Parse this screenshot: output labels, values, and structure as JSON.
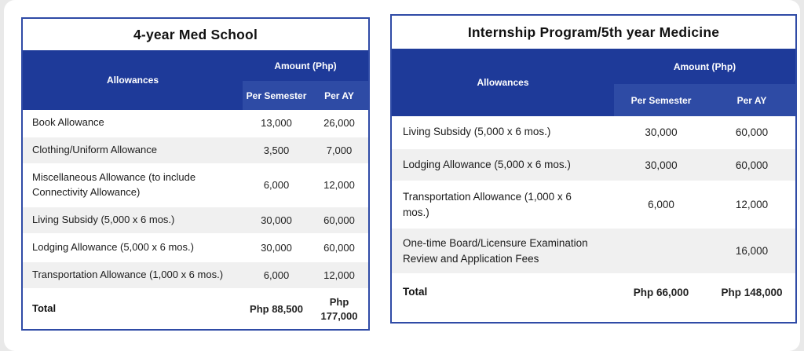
{
  "colors": {
    "header_blue": "#1e3a99",
    "subheader_blue": "#2e4ba5",
    "border_blue": "#2f4ba6",
    "alt_row_gray": "#f0f0f0",
    "card_background": "#ffffff",
    "page_background": "#e9e9e9"
  },
  "tables": [
    {
      "title": "4-year Med School",
      "headers": {
        "allowances": "Allowances",
        "amount": "Amount (Php)",
        "per_semester": "Per Semester",
        "per_ay": "Per AY"
      },
      "rows": [
        {
          "label": "Book Allowance",
          "per_semester": "13,000",
          "per_ay": "26,000"
        },
        {
          "label": "Clothing/Uniform Allowance",
          "per_semester": "3,500",
          "per_ay": "7,000"
        },
        {
          "label": "Miscellaneous Allowance (to include Connectivity Allowance)",
          "per_semester": "6,000",
          "per_ay": "12,000"
        },
        {
          "label": "Living Subsidy (5,000 x 6 mos.)",
          "per_semester": "30,000",
          "per_ay": "60,000"
        },
        {
          "label": "Lodging Allowance (5,000 x 6 mos.)",
          "per_semester": "30,000",
          "per_ay": "60,000"
        },
        {
          "label": "Transportation Allowance (1,000 x 6 mos.)",
          "per_semester": "6,000",
          "per_ay": "12,000"
        }
      ],
      "total": {
        "label": "Total",
        "per_semester": "Php 88,500",
        "per_ay": "Php 177,000"
      }
    },
    {
      "title": "Internship Program/5th year Medicine",
      "headers": {
        "allowances": "Allowances",
        "amount": "Amount (Php)",
        "per_semester": "Per Semester",
        "per_ay": "Per AY"
      },
      "rows": [
        {
          "label": "Living Subsidy (5,000 x 6 mos.)",
          "per_semester": "30,000",
          "per_ay": "60,000"
        },
        {
          "label": "Lodging Allowance (5,000 x 6 mos.)",
          "per_semester": "30,000",
          "per_ay": "60,000"
        },
        {
          "label": "Transportation Allowance (1,000 x 6 mos.)",
          "per_semester": "6,000",
          "per_ay": "12,000"
        },
        {
          "label": "One-time Board/Licensure Examination Review and Application Fees",
          "per_semester": "",
          "per_ay": "16,000"
        }
      ],
      "total": {
        "label": "Total",
        "per_semester": "Php 66,000",
        "per_ay": "Php 148,000"
      }
    }
  ]
}
